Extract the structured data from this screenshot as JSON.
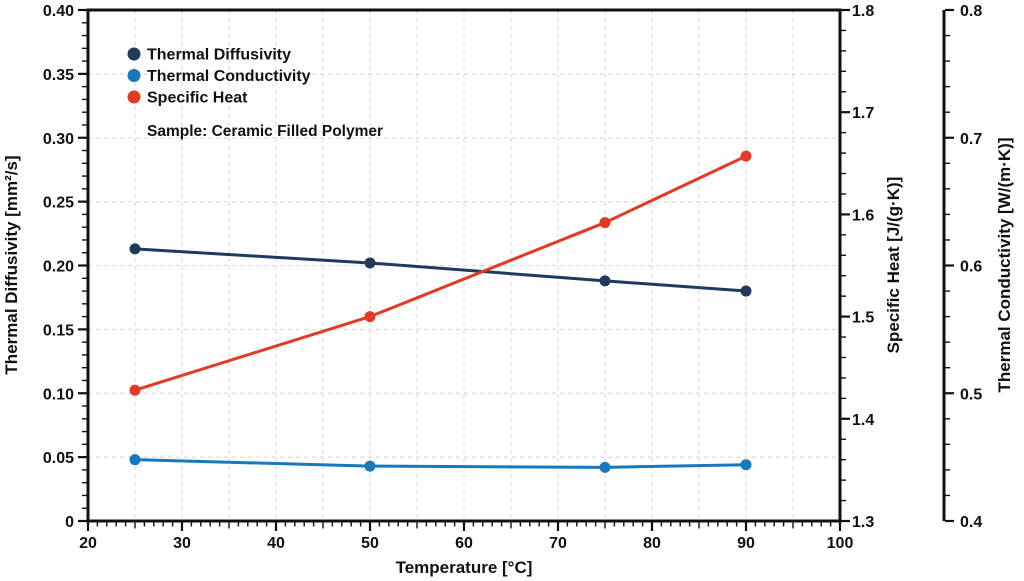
{
  "style": {
    "background": "#ffffff",
    "text_color": "#111111",
    "grid_color": "#dcdcdc",
    "spine_color": "#111111"
  },
  "chart_data": {
    "type": "line",
    "title": "",
    "annotation": "Sample: Ceramic Filled Polymer",
    "xlabel": "Temperature [°C]",
    "xlim": [
      20,
      100
    ],
    "x_ticks": [
      20,
      30,
      40,
      50,
      60,
      70,
      80,
      90,
      100
    ],
    "x_minor_step": 1,
    "x_mid_step": 5,
    "grid": {
      "x_step": 5,
      "y_step": 0.05,
      "on": true,
      "dash": "4 4"
    },
    "x": [
      25,
      50,
      75,
      90
    ],
    "axes": {
      "left": {
        "label": "Thermal Diffusivity [mm²/s]",
        "lim": [
          0,
          0.4
        ],
        "ticks": [
          "0",
          "0.05",
          "0.10",
          "0.15",
          "0.20",
          "0.25",
          "0.30",
          "0.35",
          "0.40"
        ],
        "minor_step": 0.01
      },
      "right1": {
        "label": "Specific Heat [J/(g·K)]",
        "lim": [
          1.3,
          1.8
        ],
        "ticks": [
          "1.3",
          "1.4",
          "1.5",
          "1.6",
          "1.7",
          "1.8"
        ],
        "minor_step": 0.02
      },
      "right2": {
        "label": "Thermal Conductivity [W/(m·K)]",
        "lim": [
          0.4,
          0.8
        ],
        "ticks": [
          "0.4",
          "0.5",
          "0.6",
          "0.7",
          "0.8"
        ],
        "minor_step": 0.02
      }
    },
    "series": [
      {
        "name": "Thermal Diffusivity",
        "axis": "left",
        "color": "#1f3a5c",
        "values": [
          0.213,
          0.202,
          0.188,
          0.18
        ]
      },
      {
        "name": "Thermal Conductivity",
        "axis": "right2",
        "color": "#1778be",
        "values": [
          0.448,
          0.443,
          0.442,
          0.444
        ]
      },
      {
        "name": "Specific Heat",
        "axis": "right1",
        "color": "#e23a24",
        "values": [
          1.428,
          1.5,
          1.592,
          1.657
        ]
      }
    ],
    "legend": {
      "position": "upper-left"
    }
  }
}
